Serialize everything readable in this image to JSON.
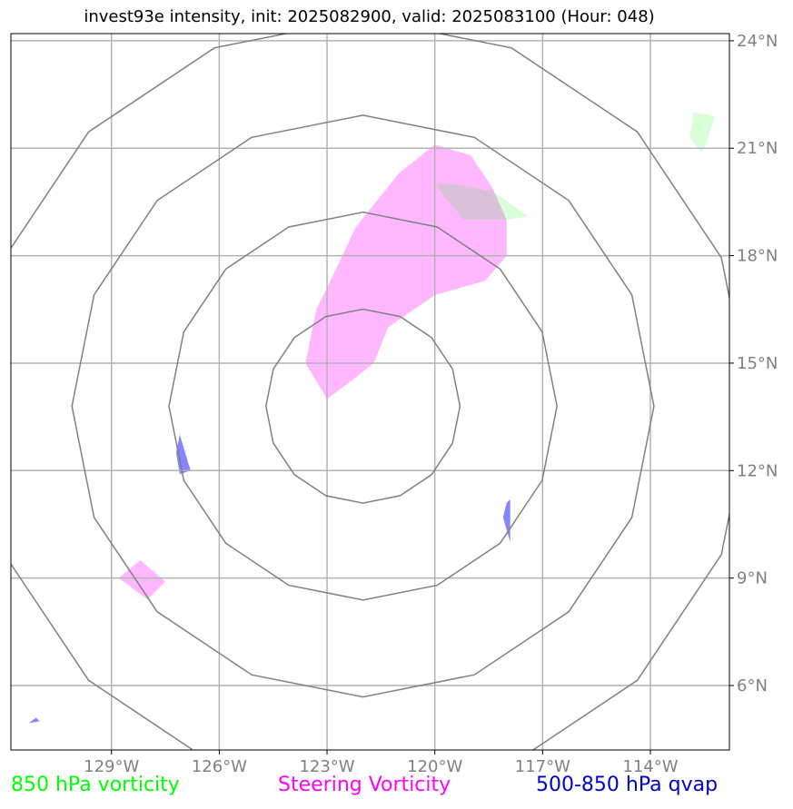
{
  "title": "invest93e intensity, init: 2025082900, valid: 2025083100 (Hour: 048)",
  "lon_labels": [
    "129°W",
    "126°W",
    "123°W",
    "120°W",
    "117°W",
    "114°W"
  ],
  "lat_labels": [
    "24°N",
    "21°N",
    "18°N",
    "15°N",
    "12°N",
    "9°N",
    "6°N"
  ],
  "legend": {
    "green": "850 hPa vorticity",
    "magenta": "Steering Vorticity",
    "blue": "500-850 hPa qvap"
  },
  "colors": {
    "green": "#00ff00",
    "magenta": "#ff00ff",
    "blue": "#0000cc",
    "grid": "#b3b3b3",
    "rings": "#808080"
  },
  "map_data": {
    "lon_range": [
      -131.8,
      -111.8
    ],
    "lat_range": [
      4.2,
      24.2
    ],
    "lon_ticks": [
      -129,
      -126,
      -123,
      -120,
      -117,
      -114
    ],
    "lat_ticks": [
      24,
      21,
      18,
      15,
      12,
      9,
      6
    ],
    "center": [
      -122,
      13.8
    ],
    "ring_radii_deg": [
      2.7,
      5.4,
      8.1,
      10.8
    ],
    "regions": [
      {
        "kind": "steering",
        "points": [
          [
            -120,
            21.1
          ],
          [
            -119,
            20.8
          ],
          [
            -118.4,
            19.9
          ],
          [
            -118,
            19
          ],
          [
            -118,
            18
          ],
          [
            -118.6,
            17.3
          ],
          [
            -120,
            16.9
          ],
          [
            -121.3,
            16
          ]
        ]
      },
      {
        "kind": "steering_full",
        "points": [
          [
            -120,
            21.1
          ],
          [
            -119,
            20.8
          ],
          [
            -118.4,
            19.9
          ],
          [
            -118,
            19
          ],
          [
            -118,
            18
          ],
          [
            -118.6,
            17.3
          ],
          [
            -120,
            16.9
          ],
          [
            -121.3,
            16
          ],
          [
            -121.7,
            15
          ],
          [
            -122.2,
            14.6
          ],
          [
            -123,
            14
          ],
          [
            -123.6,
            15
          ],
          [
            -123.3,
            16.5
          ],
          [
            -123,
            17.1
          ],
          [
            -122.2,
            18.8
          ],
          [
            -121,
            20.3
          ]
        ]
      },
      {
        "kind": "steering_small",
        "points": [
          [
            -128.2,
            9.5
          ],
          [
            -127.5,
            8.9
          ],
          [
            -128,
            8.4
          ],
          [
            -128.8,
            9
          ]
        ]
      },
      {
        "kind": "vort850",
        "points": [
          [
            -120,
            20
          ],
          [
            -119.4,
            20
          ],
          [
            -118.4,
            19.8
          ],
          [
            -117.4,
            19.1
          ],
          [
            -118,
            19
          ],
          [
            -119.2,
            19
          ]
        ]
      },
      {
        "kind": "vort850",
        "points": [
          [
            -112.8,
            22
          ],
          [
            -112.2,
            21.9
          ],
          [
            -112.5,
            21
          ],
          [
            -112.6,
            20.9
          ],
          [
            -112.9,
            21.3
          ]
        ]
      },
      {
        "kind": "qvap",
        "points": [
          [
            -127.1,
            13
          ],
          [
            -126.8,
            12
          ],
          [
            -127.1,
            11.9
          ],
          [
            -127.2,
            12.5
          ]
        ]
      },
      {
        "kind": "qvap",
        "points": [
          [
            -117.9,
            11.2
          ],
          [
            -117.9,
            10
          ],
          [
            -118.1,
            10.7
          ],
          [
            -118,
            11.1
          ]
        ]
      },
      {
        "kind": "qvap",
        "points": [
          [
            -131.1,
            5.1
          ],
          [
            -131,
            5
          ],
          [
            -131.3,
            4.95
          ]
        ]
      }
    ]
  }
}
